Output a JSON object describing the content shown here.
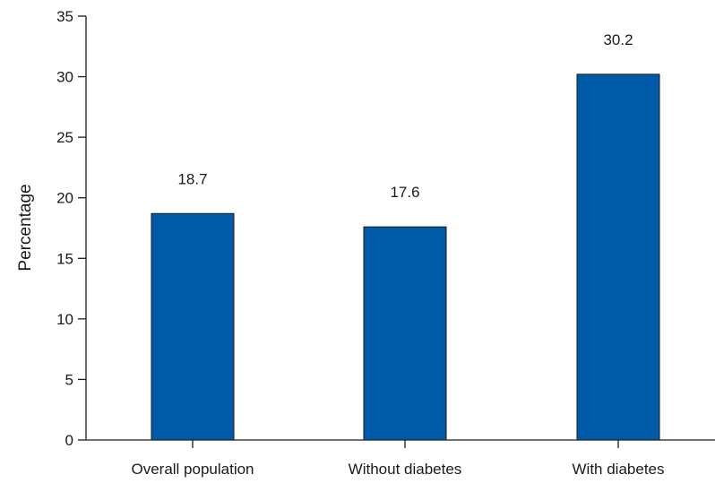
{
  "chart_data": {
    "type": "bar",
    "categories": [
      "Overall population",
      "Without diabetes",
      "With diabetes"
    ],
    "values": [
      18.7,
      17.6,
      30.2
    ],
    "data_labels": [
      "18.7",
      "17.6",
      "30.2"
    ],
    "title": "",
    "xlabel": "",
    "ylabel": "Percentage",
    "ylim": [
      0,
      35
    ],
    "yticks": [
      0,
      5,
      10,
      15,
      20,
      25,
      30,
      35
    ],
    "grid": false,
    "colors": {
      "bar_fill": "#005aa7",
      "bar_stroke": "#1a1a1a",
      "axis": "#1a1a1a"
    }
  }
}
